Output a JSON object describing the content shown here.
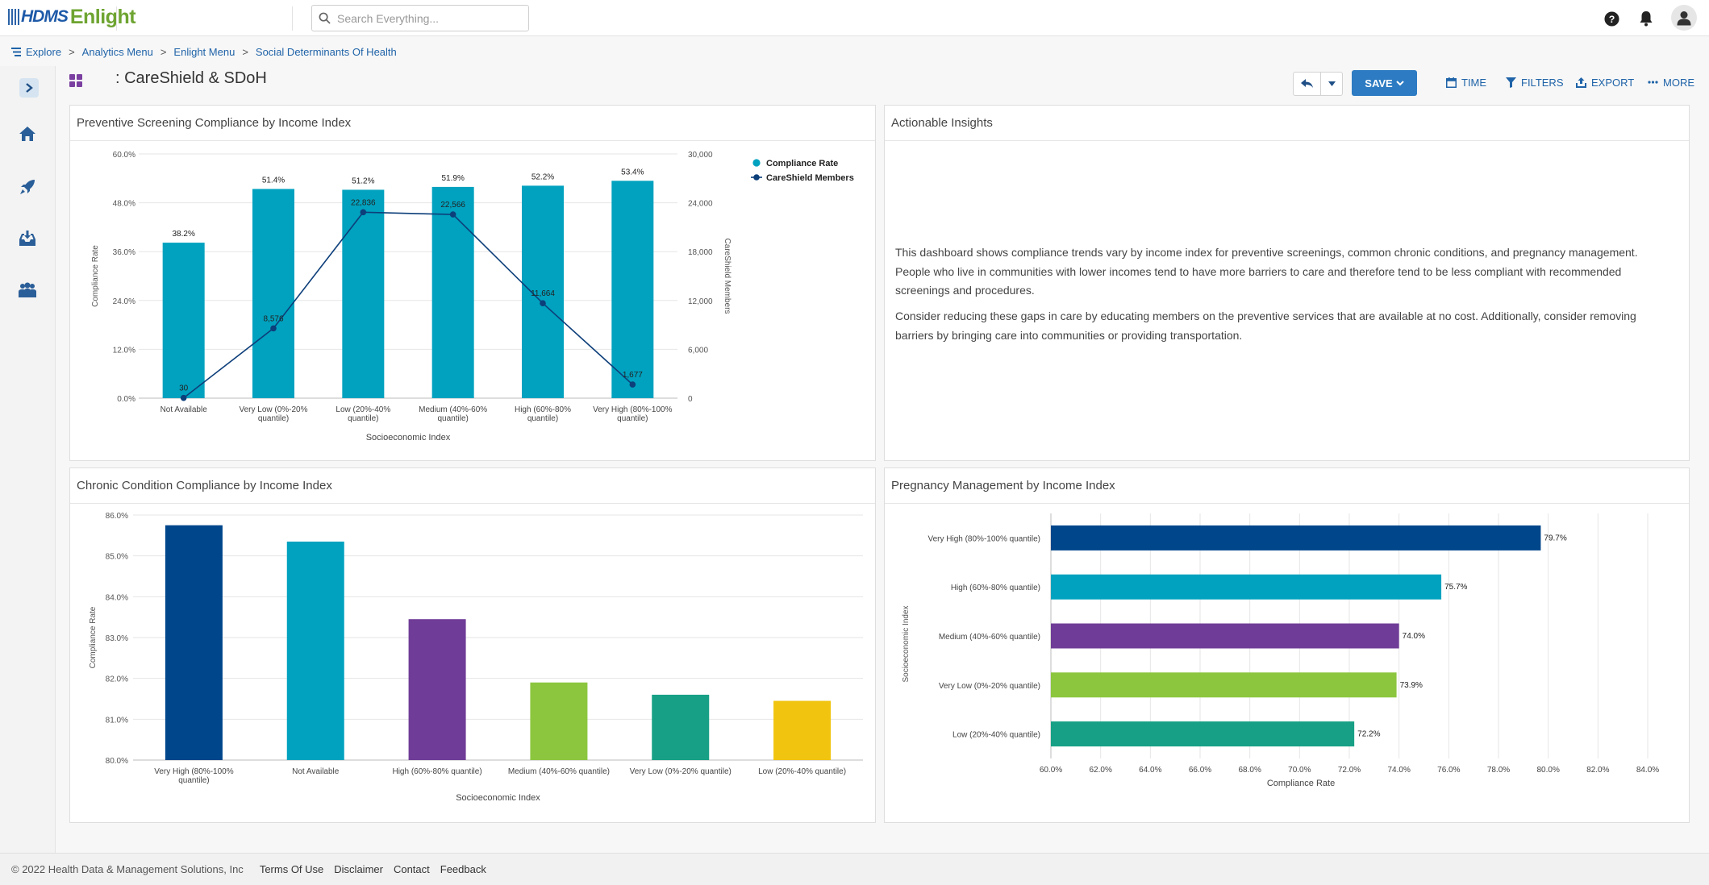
{
  "header": {
    "logo_hdms": "HDMS",
    "logo_enlight": "Enlight",
    "search_placeholder": "Search Everything..."
  },
  "breadcrumb": [
    "Explore",
    "Analytics Menu",
    "Enlight Menu",
    "Social Determinants Of Health"
  ],
  "page_title": ": CareShield & SDoH",
  "toolbar": {
    "save_label": "SAVE",
    "time_label": "TIME",
    "filters_label": "FILTERS",
    "export_label": "EXPORT",
    "more_label": "MORE"
  },
  "panels": {
    "preventive_title": "Preventive Screening Compliance by Income Index",
    "insights_title": "Actionable Insights",
    "chronic_title": "Chronic Condition Compliance by Income Index",
    "pregnancy_title": "Pregnancy Management by Income Index"
  },
  "insights": {
    "paragraph1": "This dashboard shows compliance trends vary by income index for preventive screenings, common chronic conditions, and pregnancy management. People who live in communities with lower incomes tend to have more barriers to care and therefore tend to be less compliant with recommended screenings and procedures.",
    "paragraph2": "Consider reducing these gaps in care by educating members on the preventive services that are available at no cost. Additionally, consider removing barriers by bringing care into communities or providing transportation."
  },
  "footer": {
    "copyright": "© 2022 Health Data & Management Solutions, Inc",
    "links": [
      "Terms Of Use",
      "Disclaimer",
      "Contact",
      "Feedback"
    ]
  },
  "chart_data": [
    {
      "id": "preventive",
      "type": "bar",
      "categories": [
        "Not Available",
        "Very Low (0%-20% quantile)",
        "Low (20%-40% quantile)",
        "Medium (40%-60% quantile)",
        "High (60%-80% quantile)",
        "Very High (80%-100% quantile)"
      ],
      "category_labels": [
        [
          "Not Available"
        ],
        [
          "Very Low (0%-20%",
          "quantile)"
        ],
        [
          "Low (20%-40%",
          "quantile)"
        ],
        [
          "Medium (40%-60%",
          "quantile)"
        ],
        [
          "High (60%-80%",
          "quantile)"
        ],
        [
          "Very High (80%-100%",
          "quantile)"
        ]
      ],
      "series": [
        {
          "name": "Compliance Rate",
          "type": "bar",
          "axis": "left",
          "color": "#00a2bf",
          "values": [
            38.2,
            51.4,
            51.2,
            51.9,
            52.2,
            53.4
          ],
          "labels": [
            "38.2%",
            "51.4%",
            "51.2%",
            "51.9%",
            "52.2%",
            "53.4%"
          ]
        },
        {
          "name": "CareShield Members",
          "type": "line",
          "axis": "right",
          "color": "#0d3f7a",
          "values": [
            30,
            8576,
            22836,
            22566,
            11664,
            1677
          ],
          "labels": [
            "30",
            "8,576",
            "22,836",
            "22,566",
            "11,664",
            "1,677"
          ]
        }
      ],
      "xlabel": "Socioeconomic Index",
      "ylabel": "Compliance Rate",
      "y2label": "CareShield Members",
      "ylim": [
        0,
        60
      ],
      "yticks": [
        "0.0%",
        "12.0%",
        "24.0%",
        "36.0%",
        "48.0%",
        "60.0%"
      ],
      "y2lim": [
        0,
        30000
      ],
      "y2ticks": [
        "0",
        "6,000",
        "12,000",
        "18,000",
        "24,000",
        "30,000"
      ],
      "legend": "top-right",
      "grid": true
    },
    {
      "id": "chronic",
      "type": "bar",
      "categories": [
        "Very High (80%-100% quantile)",
        "Not Available",
        "High (60%-80% quantile)",
        "Medium (40%-60% quantile)",
        "Very Low (0%-20% quantile)",
        "Low (20%-40% quantile)"
      ],
      "category_labels": [
        [
          "Very High (80%-100%",
          "quantile)"
        ],
        [
          "Not Available"
        ],
        [
          "High (60%-80% quantile)"
        ],
        [
          "Medium (40%-60% quantile)"
        ],
        [
          "Very Low (0%-20% quantile)"
        ],
        [
          "Low (20%-40% quantile)"
        ]
      ],
      "values": [
        85.75,
        85.35,
        83.45,
        81.9,
        81.6,
        81.45
      ],
      "colors": [
        "#00468b",
        "#00a2bf",
        "#6f3c97",
        "#8cc63f",
        "#17a085",
        "#f1c40f"
      ],
      "xlabel": "Socioeconomic Index",
      "ylabel": "Compliance Rate",
      "ylim": [
        80,
        86
      ],
      "yticks": [
        "80.0%",
        "81.0%",
        "82.0%",
        "83.0%",
        "84.0%",
        "85.0%",
        "86.0%"
      ],
      "grid": true
    },
    {
      "id": "pregnancy",
      "type": "bar",
      "orientation": "horizontal",
      "categories": [
        "Very High (80%-100% quantile)",
        "High (60%-80% quantile)",
        "Medium (40%-60% quantile)",
        "Very Low (0%-20% quantile)",
        "Low (20%-40% quantile)"
      ],
      "values": [
        79.7,
        75.7,
        74.0,
        73.9,
        72.2
      ],
      "labels": [
        "79.7%",
        "75.7%",
        "74.0%",
        "73.9%",
        "72.2%"
      ],
      "colors": [
        "#00468b",
        "#00a2bf",
        "#6f3c97",
        "#8cc63f",
        "#17a085"
      ],
      "xlabel": "Compliance Rate",
      "ylabel": "Socioeconomic Index",
      "xlim": [
        60,
        84
      ],
      "xticks": [
        "60.0%",
        "62.0%",
        "64.0%",
        "66.0%",
        "68.0%",
        "70.0%",
        "72.0%",
        "74.0%",
        "76.0%",
        "78.0%",
        "80.0%",
        "82.0%",
        "84.0%"
      ],
      "grid": true
    }
  ]
}
